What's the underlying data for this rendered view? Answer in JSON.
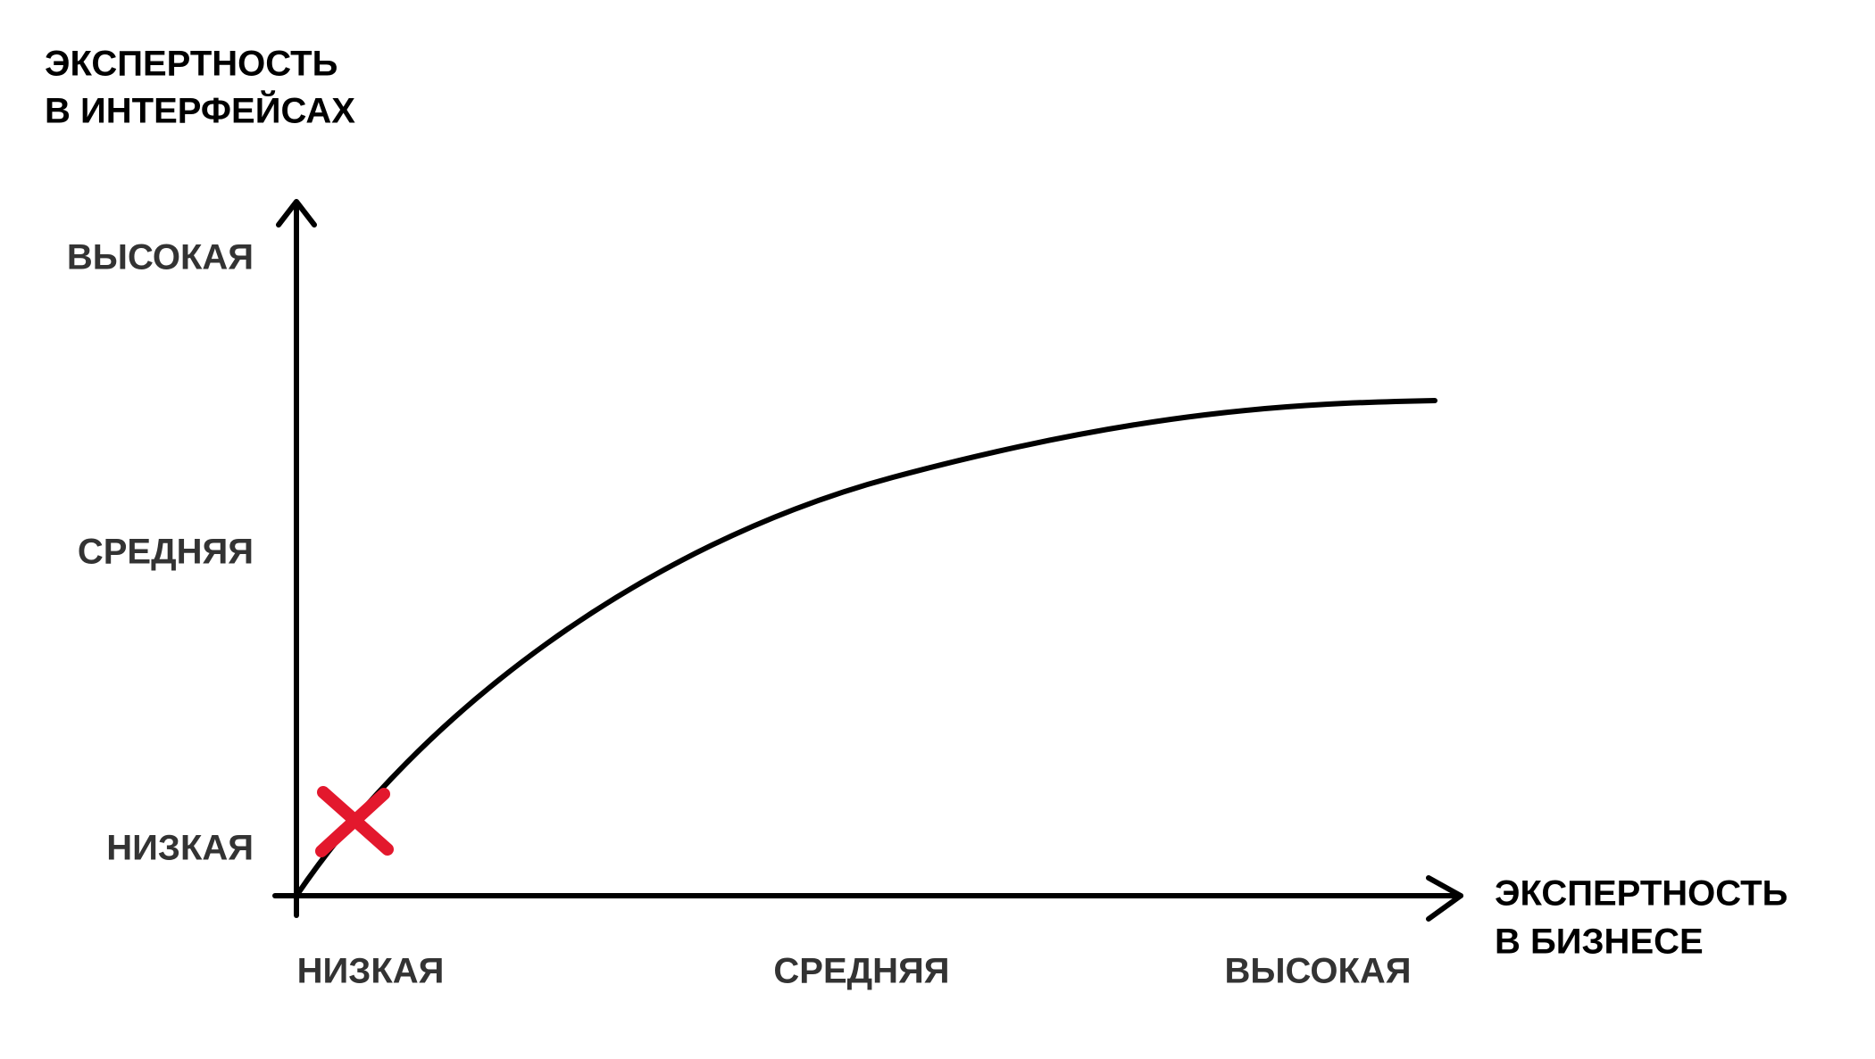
{
  "y_axis": {
    "title_lines": [
      "ЭКСПЕРТНОСТЬ",
      "В ИНТЕРФЕЙСАХ"
    ],
    "levels": [
      "НИЗКАЯ",
      "СРЕДНЯЯ",
      "ВЫСОКАЯ"
    ]
  },
  "x_axis": {
    "title_lines": [
      "ЭКСПЕРТНОСТЬ",
      "В БИЗНЕСЕ"
    ],
    "levels": [
      "НИЗКАЯ",
      "СРЕДНЯЯ",
      "ВЫСОКАЯ"
    ]
  }
}
